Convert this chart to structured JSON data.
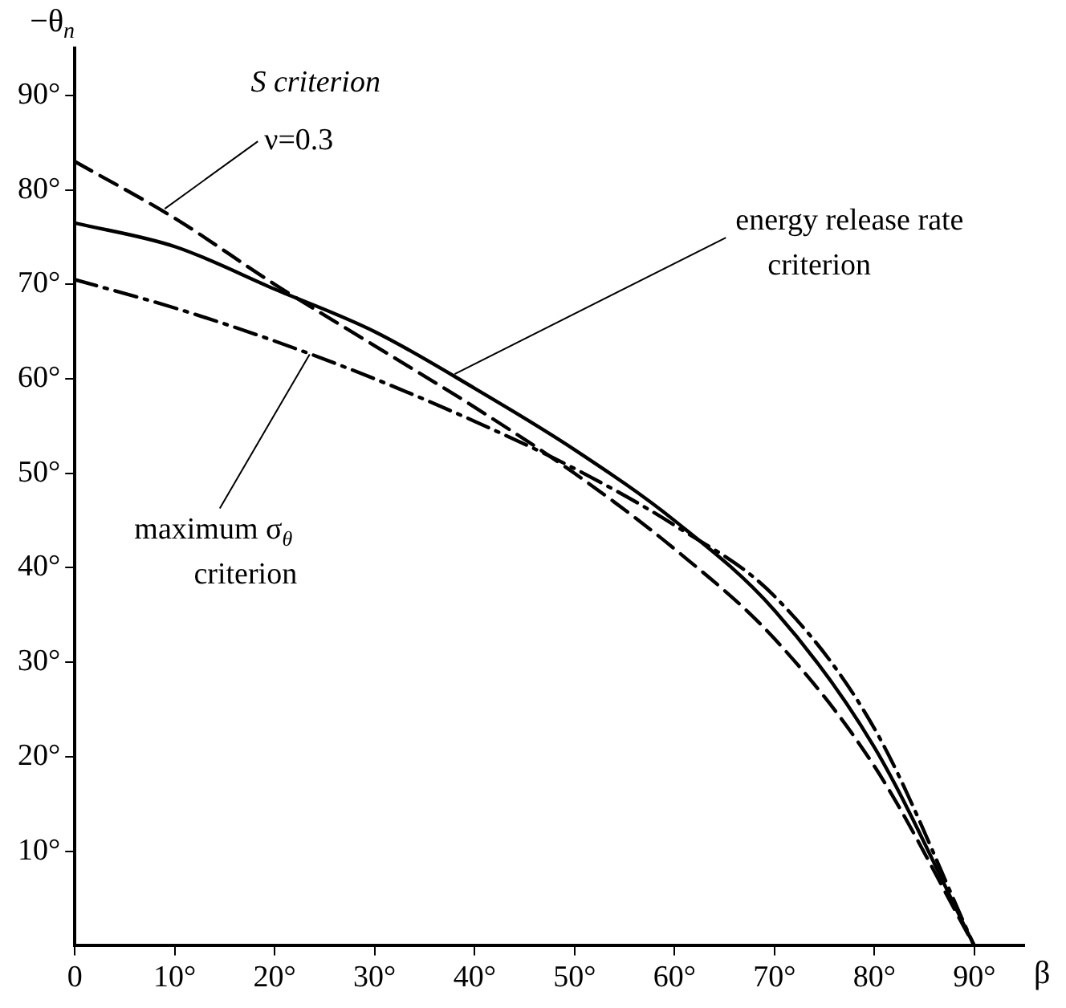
{
  "chart_data": {
    "type": "line",
    "xlabel": "β",
    "ylabel": "−θ$_{n}$",
    "x": [
      0,
      10,
      20,
      30,
      40,
      50,
      60,
      70,
      80,
      90
    ],
    "xlim": [
      0,
      95
    ],
    "xticks": [
      0,
      {
        "value": 10,
        "label": "10°"
      },
      {
        "value": 20,
        "label": "20°"
      },
      {
        "value": 30,
        "label": "30°"
      },
      {
        "value": 40,
        "label": "40°"
      },
      {
        "value": 50,
        "label": "50°"
      },
      {
        "value": 60,
        "label": "60°"
      },
      {
        "value": 70,
        "label": "70°"
      },
      {
        "value": 80,
        "label": "80°"
      },
      {
        "value": 90,
        "label": "90°"
      }
    ],
    "ylim": [
      0,
      95
    ],
    "yticks": [
      {
        "value": 10,
        "label": "10°"
      },
      {
        "value": 20,
        "label": "20°"
      },
      {
        "value": 30,
        "label": "30°"
      },
      {
        "value": 40,
        "label": "40°"
      },
      {
        "value": 50,
        "label": "50°"
      },
      {
        "value": 60,
        "label": "60°"
      },
      {
        "value": 70,
        "label": "70°"
      },
      {
        "value": 80,
        "label": "80°"
      },
      {
        "value": 90,
        "label": "90°"
      }
    ],
    "grid": false,
    "legend": false,
    "marker": "none",
    "series": [
      {
        "color": "#000000",
        "line_style": "solid",
        "values": [
          76.5,
          74,
          69.5,
          65,
          59,
          52.5,
          45,
          35.5,
          21,
          0
        ]
      },
      {
        "color": "#000000",
        "line_style": "dashdot",
        "values": [
          70.5,
          67.5,
          64,
          60,
          55.5,
          50.5,
          44.5,
          37,
          23,
          0
        ]
      },
      {
        "color": "#000000",
        "line_style": "dashed",
        "values": [
          83,
          77,
          70,
          63.5,
          57,
          50,
          42,
          32.5,
          19,
          0
        ]
      }
    ],
    "annotations": [
      "S criterion",
      {
        "text": "ν=0.3",
        "x": 9,
        "y": 78
      },
      {
        "text": "energy release rate\ncriterion",
        "x": 38,
        "y": 60.5
      },
      {
        "text": "maximum σ$_{θ}$\ncriterion",
        "x": 23.5,
        "y": 62.6
      }
    ]
  }
}
